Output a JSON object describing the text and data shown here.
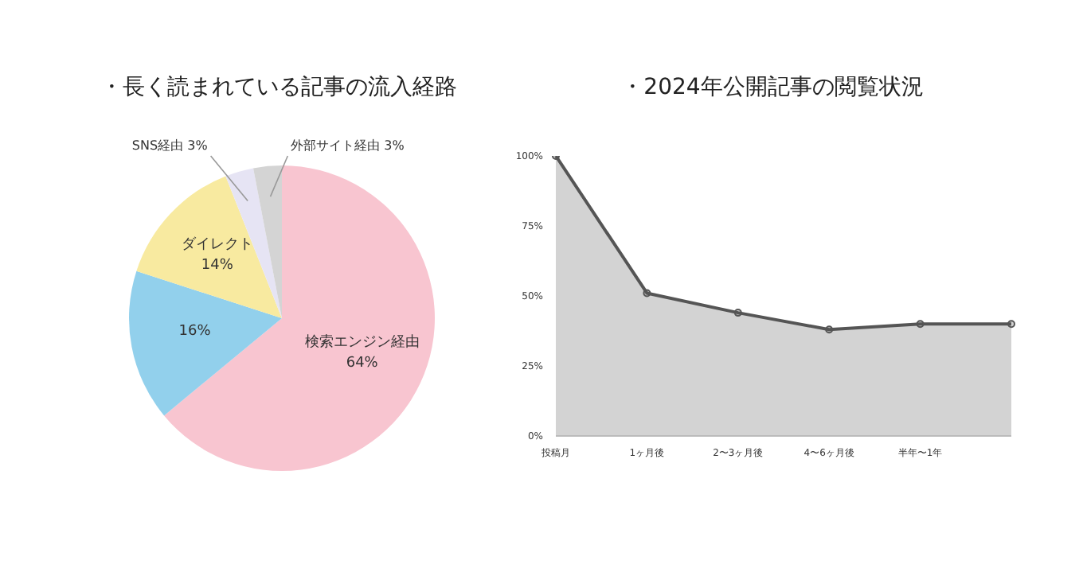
{
  "chart_data": [
    {
      "type": "pie",
      "title": "・長く読まれている記事の流入経路",
      "categories": [
        "検索エンジン経由",
        null,
        "ダイレクト",
        "SNS経由",
        "外部サイト経由"
      ],
      "values": [
        64,
        16,
        14,
        3,
        3
      ],
      "value_labels": [
        "64%",
        "16%",
        "14%",
        "3%",
        "3%"
      ],
      "colors": [
        "#f8c5d0",
        "#92d0ec",
        "#f8eaa0",
        "#e6e4f4",
        "#d4d4d4"
      ],
      "legend": false
    },
    {
      "type": "area",
      "title": "・2024年公開記事の閲覧状況",
      "categories": [
        "投稿月",
        "1ヶ月後",
        "2〜3ヶ月後",
        "4〜6ヶ月後",
        "半年〜1年",
        null
      ],
      "series": [
        {
          "color": "#555555",
          "values": [
            100,
            51,
            44,
            38,
            40,
            40
          ]
        }
      ],
      "ylim": [
        0,
        100
      ],
      "yticks": [
        {
          "value": 0,
          "label": "0%"
        },
        {
          "value": 25,
          "label": "25%"
        },
        {
          "value": 50,
          "label": "50%"
        },
        {
          "value": 75,
          "label": "75%"
        },
        {
          "value": 100,
          "label": "100%"
        }
      ],
      "grid": false,
      "marker": "circle",
      "legend": false
    }
  ]
}
